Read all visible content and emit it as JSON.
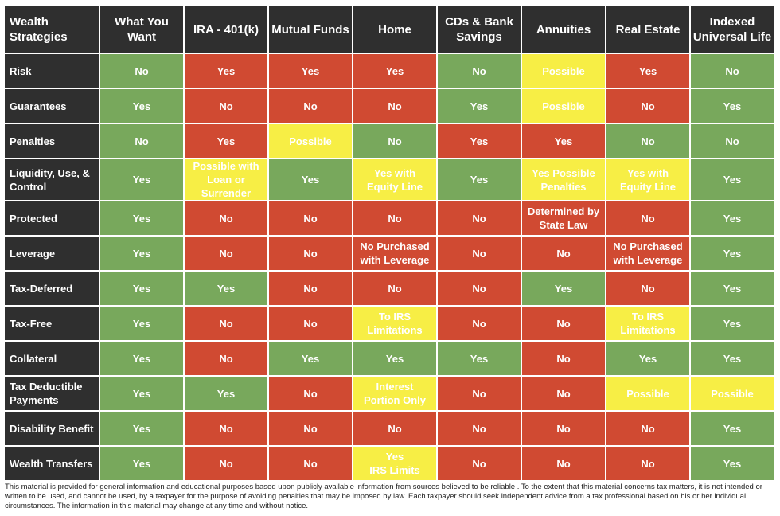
{
  "colors": {
    "Yes": "#78a85c",
    "No": "#d04a32",
    "Possible": "#f7ee45",
    "header_bg": "#2f2f2f"
  },
  "header": {
    "corner": "Wealth\nStrategies",
    "columns": [
      "What You\nWant",
      "IRA - 401(k)",
      "Mutual Funds",
      "Home",
      "CDs & Bank\nSavings",
      "Annuities",
      "Real Estate",
      "Indexed\nUniversal Life"
    ]
  },
  "rows": [
    {
      "label": "Risk",
      "cells": [
        {
          "text": "No",
          "color": "green"
        },
        {
          "text": "Yes",
          "color": "red"
        },
        {
          "text": "Yes",
          "color": "red"
        },
        {
          "text": "Yes",
          "color": "red"
        },
        {
          "text": "No",
          "color": "green"
        },
        {
          "text": "Possible",
          "color": "yellow"
        },
        {
          "text": "Yes",
          "color": "red"
        },
        {
          "text": "No",
          "color": "green"
        }
      ]
    },
    {
      "label": "Guarantees",
      "cells": [
        {
          "text": "Yes",
          "color": "green"
        },
        {
          "text": "No",
          "color": "red"
        },
        {
          "text": "No",
          "color": "red"
        },
        {
          "text": "No",
          "color": "red"
        },
        {
          "text": "Yes",
          "color": "green"
        },
        {
          "text": "Possible",
          "color": "yellow"
        },
        {
          "text": "No",
          "color": "red"
        },
        {
          "text": "Yes",
          "color": "green"
        }
      ]
    },
    {
      "label": "Penalties",
      "cells": [
        {
          "text": "No",
          "color": "green"
        },
        {
          "text": "Yes",
          "color": "red"
        },
        {
          "text": "Possible",
          "color": "yellow"
        },
        {
          "text": "No",
          "color": "green"
        },
        {
          "text": "Yes",
          "color": "red"
        },
        {
          "text": "Yes",
          "color": "red"
        },
        {
          "text": "No",
          "color": "green"
        },
        {
          "text": "No",
          "color": "green"
        }
      ]
    },
    {
      "label": "Liquidity, Use, &\nControl",
      "cells": [
        {
          "text": "Yes",
          "color": "green"
        },
        {
          "text": "Possible with\nLoan or Surrender",
          "color": "yellow"
        },
        {
          "text": "Yes",
          "color": "green"
        },
        {
          "text": "Yes with\nEquity Line",
          "color": "yellow"
        },
        {
          "text": "Yes",
          "color": "green"
        },
        {
          "text": "Yes Possible\nPenalties",
          "color": "yellow"
        },
        {
          "text": "Yes with\nEquity Line",
          "color": "yellow"
        },
        {
          "text": "Yes",
          "color": "green"
        }
      ]
    },
    {
      "label": "Protected",
      "cells": [
        {
          "text": "Yes",
          "color": "green"
        },
        {
          "text": "No",
          "color": "red"
        },
        {
          "text": "No",
          "color": "red"
        },
        {
          "text": "No",
          "color": "red"
        },
        {
          "text": "No",
          "color": "red"
        },
        {
          "text": "Determined by\nState Law",
          "color": "red"
        },
        {
          "text": "No",
          "color": "red"
        },
        {
          "text": "Yes",
          "color": "green"
        }
      ]
    },
    {
      "label": "Leverage",
      "cells": [
        {
          "text": "Yes",
          "color": "green"
        },
        {
          "text": "No",
          "color": "red"
        },
        {
          "text": "No",
          "color": "red"
        },
        {
          "text": "No Purchased\nwith Leverage",
          "color": "red"
        },
        {
          "text": "No",
          "color": "red"
        },
        {
          "text": "No",
          "color": "red"
        },
        {
          "text": "No Purchased\nwith Leverage",
          "color": "red"
        },
        {
          "text": "Yes",
          "color": "green"
        }
      ]
    },
    {
      "label": "Tax-Deferred",
      "cells": [
        {
          "text": "Yes",
          "color": "green"
        },
        {
          "text": "Yes",
          "color": "green"
        },
        {
          "text": "No",
          "color": "red"
        },
        {
          "text": "No",
          "color": "red"
        },
        {
          "text": "No",
          "color": "red"
        },
        {
          "text": "Yes",
          "color": "green"
        },
        {
          "text": "No",
          "color": "red"
        },
        {
          "text": "Yes",
          "color": "green"
        }
      ]
    },
    {
      "label": "Tax-Free",
      "cells": [
        {
          "text": "Yes",
          "color": "green"
        },
        {
          "text": "No",
          "color": "red"
        },
        {
          "text": "No",
          "color": "red"
        },
        {
          "text": "To IRS\nLimitations",
          "color": "yellow"
        },
        {
          "text": "No",
          "color": "red"
        },
        {
          "text": "No",
          "color": "red"
        },
        {
          "text": "To IRS\nLimitations",
          "color": "yellow"
        },
        {
          "text": "Yes",
          "color": "green"
        }
      ]
    },
    {
      "label": "Collateral",
      "cells": [
        {
          "text": "Yes",
          "color": "green"
        },
        {
          "text": "No",
          "color": "red"
        },
        {
          "text": "Yes",
          "color": "green"
        },
        {
          "text": "Yes",
          "color": "green"
        },
        {
          "text": "Yes",
          "color": "green"
        },
        {
          "text": "No",
          "color": "red"
        },
        {
          "text": "Yes",
          "color": "green"
        },
        {
          "text": "Yes",
          "color": "green"
        }
      ]
    },
    {
      "label": "Tax Deductible\nPayments",
      "cells": [
        {
          "text": "Yes",
          "color": "green"
        },
        {
          "text": "Yes",
          "color": "green"
        },
        {
          "text": "No",
          "color": "red"
        },
        {
          "text": "Interest\nPortion Only",
          "color": "yellow"
        },
        {
          "text": "No",
          "color": "red"
        },
        {
          "text": "No",
          "color": "red"
        },
        {
          "text": "Possible",
          "color": "yellow"
        },
        {
          "text": "Possible",
          "color": "yellow"
        }
      ]
    },
    {
      "label": "Disability Benefit",
      "cells": [
        {
          "text": "Yes",
          "color": "green"
        },
        {
          "text": "No",
          "color": "red"
        },
        {
          "text": "No",
          "color": "red"
        },
        {
          "text": "No",
          "color": "red"
        },
        {
          "text": "No",
          "color": "red"
        },
        {
          "text": "No",
          "color": "red"
        },
        {
          "text": "No",
          "color": "red"
        },
        {
          "text": "Yes",
          "color": "green"
        }
      ]
    },
    {
      "label": "Wealth Transfers",
      "cells": [
        {
          "text": "Yes",
          "color": "green"
        },
        {
          "text": "No",
          "color": "red"
        },
        {
          "text": "No",
          "color": "red"
        },
        {
          "text": "Yes\nIRS Limits",
          "color": "yellow"
        },
        {
          "text": "No",
          "color": "red"
        },
        {
          "text": "No",
          "color": "red"
        },
        {
          "text": "No",
          "color": "red"
        },
        {
          "text": "Yes",
          "color": "green"
        }
      ]
    }
  ],
  "disclaimer": "This material is provided for general information and educational purposes based upon publicly available information from sources believed to be reliable . To the extent that this material concerns tax matters, it is not intended or written to be used, and cannot be used, by a taxpayer for the purpose of avoiding penalties that may be imposed by law. Each taxpayer should seek independent advice from a tax professional based on his or her individual circumstances. The information in this material may change at any time and without notice."
}
